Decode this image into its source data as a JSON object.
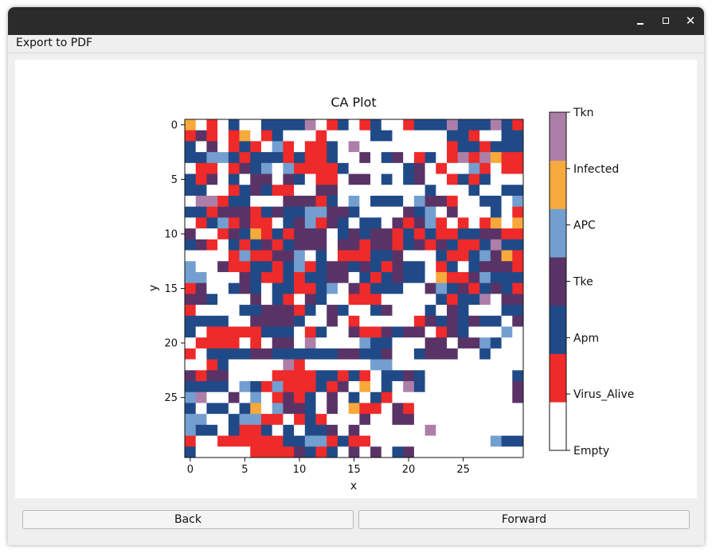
{
  "window": {
    "title": ""
  },
  "menu": {
    "export_label": "Export to PDF"
  },
  "buttons": {
    "back_label": "Back",
    "forward_label": "Forward"
  },
  "chart_data": {
    "type": "heatmap",
    "title": "CA Plot",
    "xlabel": "x",
    "ylabel": "y",
    "x_ticks": [
      0,
      5,
      10,
      15,
      20,
      25
    ],
    "y_ticks": [
      0,
      5,
      10,
      15,
      20,
      25
    ],
    "xlim": [
      -0.5,
      29.5
    ],
    "ylim": [
      29.5,
      -0.5
    ],
    "colorbar": {
      "labels": [
        "Empty",
        "Virus_Alive",
        "Apm",
        "Tke",
        "APC",
        "Infected",
        "Tkn"
      ],
      "colors": [
        "#ffffff",
        "#ee2a2a",
        "#204a87",
        "#5a3366",
        "#729fcf",
        "#f8a93b",
        "#ad7fa8"
      ]
    },
    "grid": [
      "5010200222260120120012226222621",
      "1310150120001000022000002210022",
      "2030121041011206000000001221222",
      "2244212221211200302301201616511",
      "0110132404111120000023010041011",
      "2130203303201103302023001212000",
      "2200123211003300000000200020022",
      "0661220003331204022204331002204",
      "2213331232244332000032403000201",
      "0124131102341320220313410101505",
      "3001325121333023233121211223311",
      "2310212312333033133123132112622",
      "0000141133402011122300021124351",
      "4003112212412332321322012023331",
      "4400032112122330212322051134222",
      "1300232022112403122200342312321",
      "3320003021032001110000021226033",
      "1000022333120320023000203200022",
      "2222003333200301000001323232203",
      "2011111222012003113233013200040",
      "0111101033060000422000330334200",
      "1022223322222233223002333002000",
      "0012000006100000044000000000000",
      "3133000011112212102232000000002",
      "2222042141112130502062000000003",
      "4600304013120302021000000000003",
      "2022025043320305110310000000000",
      "4400244110121000300330000000000",
      "4220211202022303000000600000000",
      "1001111112244121100000000000422",
      "2000001111321203030230000000000"
    ]
  }
}
